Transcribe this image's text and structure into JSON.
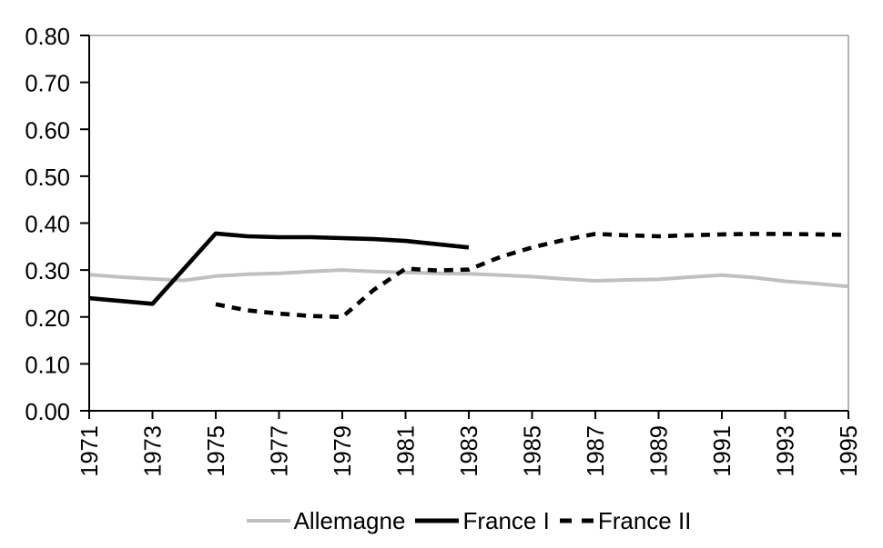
{
  "chart_data": {
    "type": "line",
    "title": "",
    "xlabel": "",
    "ylabel": "",
    "x_range": [
      1971,
      1995
    ],
    "ylim": [
      0.0,
      0.8
    ],
    "y_tick_step": 0.1,
    "y_tick_labels": [
      "0.00",
      "0.10",
      "0.20",
      "0.30",
      "0.40",
      "0.50",
      "0.60",
      "0.70",
      "0.80"
    ],
    "x_tick_labels": [
      "1971",
      "1973",
      "1975",
      "1977",
      "1979",
      "1981",
      "1983",
      "1985",
      "1987",
      "1989",
      "1991",
      "1993",
      "1995"
    ],
    "grid": "off",
    "plot_border": "top-right-gray",
    "legend_position": "bottom-center",
    "colors": {
      "allemagne_line": "#c0c0c0",
      "france_lines": "#000000",
      "border": "#8c8c8c",
      "axis": "#000000",
      "text": "#000000",
      "background": "#ffffff"
    },
    "series": [
      {
        "name": "Allemagne",
        "style": "solid",
        "color": "#c0c0c0",
        "years": [
          1971,
          1972,
          1973,
          1974,
          1975,
          1976,
          1977,
          1978,
          1979,
          1980,
          1981,
          1982,
          1983,
          1984,
          1985,
          1986,
          1987,
          1988,
          1989,
          1990,
          1991,
          1992,
          1993,
          1994,
          1995
        ],
        "values": [
          0.29,
          0.285,
          0.281,
          0.278,
          0.287,
          0.291,
          0.293,
          0.297,
          0.3,
          0.297,
          0.295,
          0.293,
          0.292,
          0.289,
          0.286,
          0.281,
          0.277,
          0.279,
          0.28,
          0.285,
          0.289,
          0.284,
          0.276,
          0.271,
          0.265
        ]
      },
      {
        "name": "France I",
        "style": "solid",
        "color": "#000000",
        "years": [
          1971,
          1972,
          1973,
          1974,
          1975,
          1976,
          1977,
          1978,
          1979,
          1980,
          1981,
          1982,
          1983
        ],
        "values": [
          0.24,
          0.234,
          0.228,
          0.303,
          0.378,
          0.372,
          0.37,
          0.37,
          0.368,
          0.366,
          0.362,
          0.355,
          0.348
        ]
      },
      {
        "name": "France II",
        "style": "dashed",
        "color": "#000000",
        "years": [
          1975,
          1976,
          1977,
          1978,
          1979,
          1980,
          1981,
          1982,
          1983,
          1984,
          1985,
          1986,
          1987,
          1988,
          1989,
          1990,
          1991,
          1992,
          1993,
          1994,
          1995
        ],
        "values": [
          0.227,
          0.214,
          0.207,
          0.202,
          0.2,
          0.258,
          0.303,
          0.299,
          0.301,
          0.328,
          0.348,
          0.364,
          0.377,
          0.374,
          0.372,
          0.374,
          0.376,
          0.377,
          0.377,
          0.376,
          0.375
        ]
      }
    ]
  }
}
